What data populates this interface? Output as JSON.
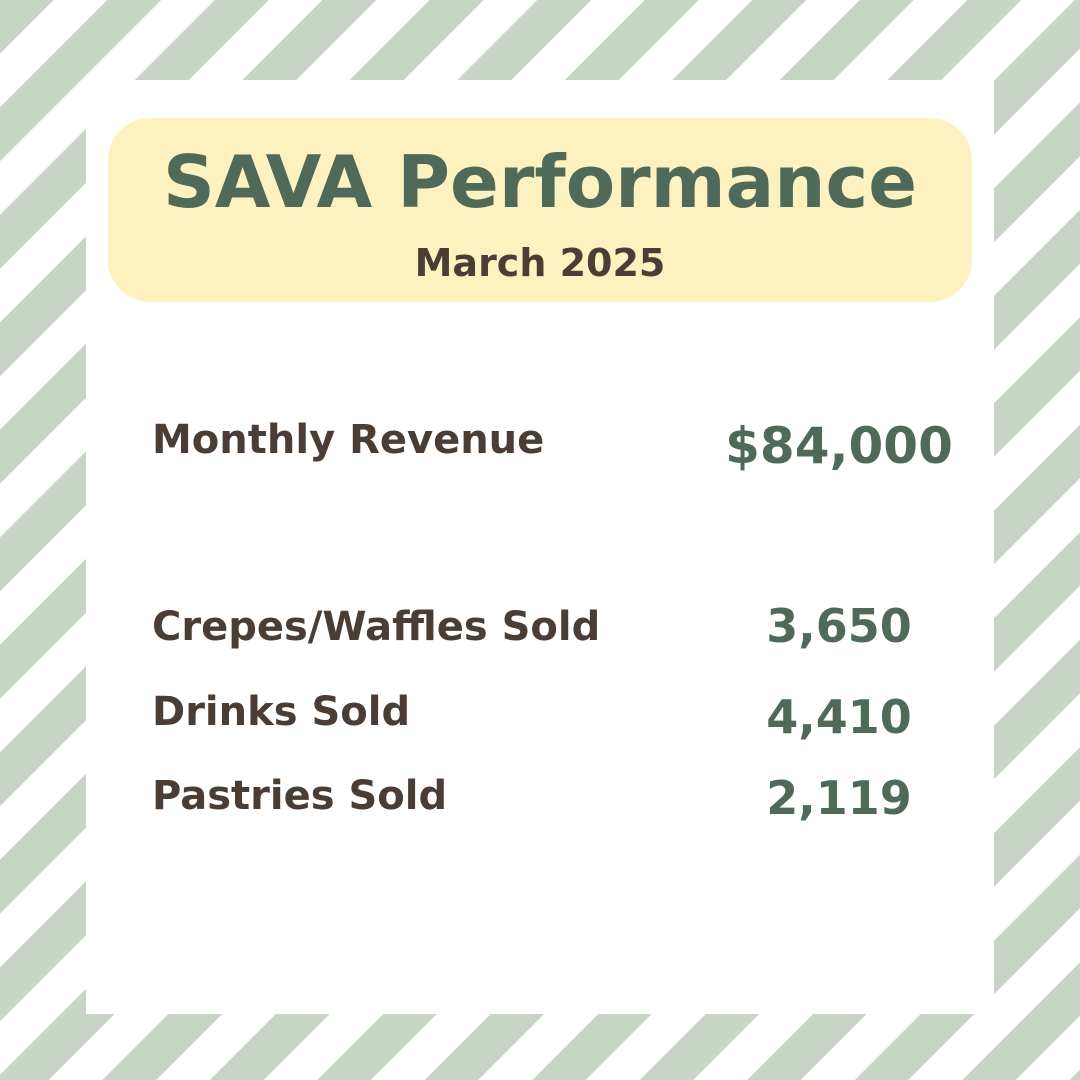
{
  "header": {
    "title": "SAVA Performance",
    "subtitle": "March 2025"
  },
  "metrics": [
    {
      "label": "Monthly Revenue",
      "value": "$84,000"
    },
    {
      "label": "Crepes/Waffles  Sold",
      "value": "3,650"
    },
    {
      "label": "Drinks Sold",
      "value": "4,410"
    },
    {
      "label": "Pastries Sold",
      "value": "2,119"
    }
  ],
  "colors": {
    "stripe": "#c8d5c6",
    "header_background": "#fdf2bf",
    "title": "#4f6a59",
    "label_text": "#4a3d35",
    "value_text": "#4f6a59"
  }
}
